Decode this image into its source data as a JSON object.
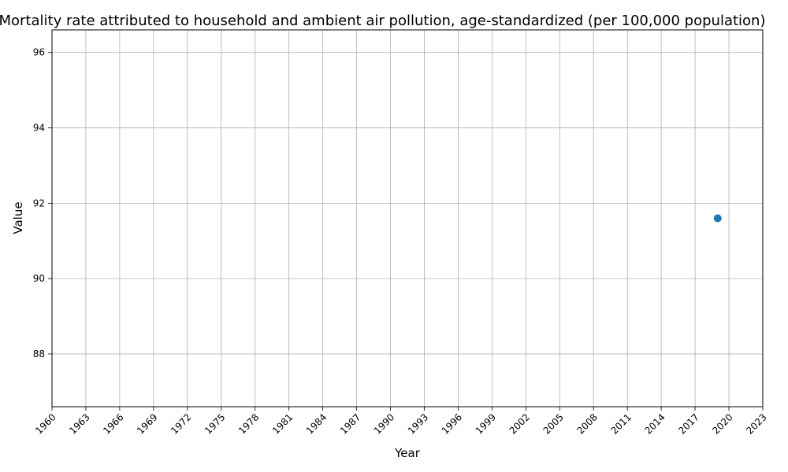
{
  "chart_data": {
    "type": "scatter",
    "title": "Mortality rate attributed to household and ambient air pollution, age-standardized (per 100,000 population)",
    "xlabel": "Year",
    "ylabel": "Value",
    "xlim": [
      1960,
      2023
    ],
    "ylim": [
      86.6,
      96.6
    ],
    "xticks": [
      1960,
      1963,
      1966,
      1969,
      1972,
      1975,
      1978,
      1981,
      1984,
      1987,
      1990,
      1993,
      1996,
      1999,
      2002,
      2005,
      2008,
      2011,
      2014,
      2017,
      2020,
      2023
    ],
    "yticks": [
      88,
      90,
      92,
      94,
      96
    ],
    "grid": true,
    "series": [
      {
        "x": [
          2019
        ],
        "y": [
          91.6
        ]
      }
    ],
    "colors": {
      "point": "#1f77b4",
      "grid": "#b0b0b0",
      "axis": "#000000"
    }
  }
}
